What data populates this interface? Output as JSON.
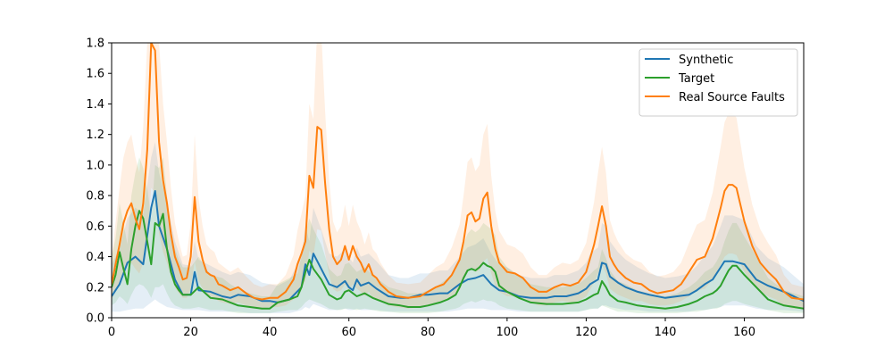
{
  "chart_data": {
    "type": "line",
    "title": "",
    "xlabel": "",
    "ylabel": "",
    "xlim": [
      0,
      175
    ],
    "ylim": [
      0,
      1.8
    ],
    "xticks": [
      0,
      20,
      40,
      60,
      80,
      100,
      120,
      140,
      160
    ],
    "yticks": [
      0.0,
      0.2,
      0.4,
      0.6,
      0.8,
      1.0,
      1.2,
      1.4,
      1.6,
      1.8
    ],
    "xtick_labels": [
      "0",
      "20",
      "40",
      "60",
      "80",
      "100",
      "120",
      "140",
      "160"
    ],
    "ytick_labels": [
      "0.0",
      "0.2",
      "0.4",
      "0.6",
      "0.8",
      "1.0",
      "1.2",
      "1.4",
      "1.6",
      "1.8"
    ],
    "grid": false,
    "legend_position": "top-right",
    "series": [
      {
        "name": "Synthetic",
        "color": "#1f77b4",
        "x": [
          0,
          2,
          4,
          6,
          8,
          10,
          11,
          12,
          14,
          16,
          18,
          20,
          21,
          22,
          25,
          28,
          30,
          32,
          35,
          38,
          40,
          42,
          45,
          48,
          49,
          50,
          51,
          53,
          55,
          57,
          59,
          60,
          61,
          62,
          63,
          65,
          67,
          70,
          73,
          75,
          78,
          80,
          83,
          85,
          88,
          90,
          92,
          94,
          96,
          98,
          100,
          103,
          106,
          108,
          110,
          112,
          115,
          118,
          120,
          121,
          123,
          124,
          125,
          126,
          128,
          130,
          133,
          136,
          140,
          143,
          146,
          148,
          150,
          152,
          154,
          155,
          157,
          160,
          163,
          166,
          170,
          175
        ],
        "y": [
          0.14,
          0.22,
          0.36,
          0.4,
          0.35,
          0.72,
          0.83,
          0.6,
          0.45,
          0.25,
          0.15,
          0.15,
          0.3,
          0.18,
          0.17,
          0.14,
          0.13,
          0.15,
          0.14,
          0.11,
          0.11,
          0.1,
          0.12,
          0.2,
          0.35,
          0.28,
          0.42,
          0.32,
          0.22,
          0.2,
          0.24,
          0.2,
          0.18,
          0.25,
          0.21,
          0.23,
          0.19,
          0.14,
          0.13,
          0.13,
          0.15,
          0.15,
          0.16,
          0.16,
          0.22,
          0.25,
          0.26,
          0.28,
          0.22,
          0.18,
          0.17,
          0.14,
          0.13,
          0.13,
          0.13,
          0.14,
          0.14,
          0.16,
          0.19,
          0.22,
          0.25,
          0.36,
          0.35,
          0.27,
          0.23,
          0.2,
          0.17,
          0.15,
          0.13,
          0.14,
          0.15,
          0.18,
          0.22,
          0.25,
          0.33,
          0.37,
          0.37,
          0.35,
          0.25,
          0.21,
          0.17,
          0.11
        ],
        "lower": [
          0.04,
          0.04,
          0.05,
          0.06,
          0.06,
          0.1,
          0.12,
          0.1,
          0.07,
          0.06,
          0.05,
          0.05,
          0.05,
          0.05,
          0.04,
          0.04,
          0.04,
          0.04,
          0.03,
          0.03,
          0.03,
          0.03,
          0.03,
          0.05,
          0.07,
          0.06,
          0.09,
          0.07,
          0.05,
          0.05,
          0.06,
          0.05,
          0.05,
          0.06,
          0.05,
          0.05,
          0.05,
          0.04,
          0.04,
          0.04,
          0.04,
          0.04,
          0.04,
          0.04,
          0.05,
          0.06,
          0.06,
          0.06,
          0.05,
          0.05,
          0.05,
          0.04,
          0.04,
          0.04,
          0.04,
          0.04,
          0.04,
          0.04,
          0.05,
          0.06,
          0.06,
          0.08,
          0.08,
          0.07,
          0.06,
          0.05,
          0.05,
          0.04,
          0.04,
          0.04,
          0.04,
          0.05,
          0.05,
          0.06,
          0.07,
          0.08,
          0.08,
          0.08,
          0.06,
          0.05,
          0.05,
          0.04
        ],
        "upper": [
          0.35,
          0.45,
          0.65,
          0.72,
          0.68,
          1.05,
          1.15,
          0.95,
          0.75,
          0.5,
          0.35,
          0.34,
          0.5,
          0.38,
          0.34,
          0.3,
          0.28,
          0.3,
          0.28,
          0.23,
          0.22,
          0.21,
          0.25,
          0.4,
          0.6,
          0.5,
          0.72,
          0.58,
          0.42,
          0.4,
          0.45,
          0.4,
          0.36,
          0.46,
          0.4,
          0.42,
          0.37,
          0.28,
          0.26,
          0.26,
          0.29,
          0.29,
          0.31,
          0.31,
          0.4,
          0.46,
          0.48,
          0.52,
          0.42,
          0.35,
          0.33,
          0.28,
          0.26,
          0.26,
          0.26,
          0.28,
          0.28,
          0.31,
          0.36,
          0.42,
          0.46,
          0.62,
          0.6,
          0.5,
          0.43,
          0.38,
          0.33,
          0.29,
          0.26,
          0.27,
          0.29,
          0.34,
          0.41,
          0.47,
          0.6,
          0.67,
          0.67,
          0.64,
          0.47,
          0.39,
          0.33,
          0.22
        ]
      },
      {
        "name": "Target",
        "color": "#2ca02c",
        "x": [
          0,
          1,
          2,
          3,
          4,
          5,
          6,
          7,
          8,
          9,
          10,
          11,
          12,
          13,
          14,
          15,
          16,
          17,
          18,
          20,
          22,
          25,
          28,
          30,
          32,
          35,
          38,
          40,
          42,
          45,
          47,
          48,
          49,
          50,
          51,
          53,
          55,
          57,
          58,
          59,
          60,
          62,
          64,
          66,
          68,
          70,
          73,
          75,
          78,
          80,
          83,
          85,
          87,
          88,
          89,
          90,
          91,
          92,
          93,
          94,
          95,
          96,
          97,
          98,
          100,
          103,
          106,
          110,
          114,
          118,
          120,
          122,
          123,
          124,
          125,
          126,
          128,
          130,
          133,
          136,
          140,
          143,
          146,
          148,
          150,
          152,
          153,
          154,
          155,
          156,
          157,
          158,
          160,
          163,
          166,
          170,
          175
        ],
        "y": [
          0.2,
          0.28,
          0.43,
          0.32,
          0.22,
          0.45,
          0.6,
          0.7,
          0.65,
          0.5,
          0.35,
          0.62,
          0.6,
          0.68,
          0.45,
          0.3,
          0.22,
          0.18,
          0.15,
          0.15,
          0.2,
          0.13,
          0.12,
          0.1,
          0.08,
          0.07,
          0.06,
          0.06,
          0.1,
          0.12,
          0.14,
          0.2,
          0.3,
          0.38,
          0.32,
          0.25,
          0.15,
          0.12,
          0.13,
          0.17,
          0.18,
          0.14,
          0.16,
          0.13,
          0.11,
          0.09,
          0.08,
          0.07,
          0.07,
          0.08,
          0.1,
          0.12,
          0.15,
          0.2,
          0.26,
          0.31,
          0.32,
          0.31,
          0.33,
          0.36,
          0.34,
          0.33,
          0.3,
          0.21,
          0.17,
          0.13,
          0.1,
          0.09,
          0.09,
          0.1,
          0.12,
          0.15,
          0.16,
          0.24,
          0.2,
          0.15,
          0.11,
          0.1,
          0.08,
          0.07,
          0.06,
          0.07,
          0.09,
          0.11,
          0.14,
          0.16,
          0.18,
          0.21,
          0.26,
          0.31,
          0.34,
          0.34,
          0.28,
          0.2,
          0.12,
          0.08,
          0.06
        ],
        "lower": [
          0.08,
          0.1,
          0.14,
          0.12,
          0.09,
          0.15,
          0.2,
          0.22,
          0.21,
          0.18,
          0.13,
          0.2,
          0.2,
          0.22,
          0.16,
          0.11,
          0.08,
          0.07,
          0.06,
          0.06,
          0.07,
          0.05,
          0.05,
          0.04,
          0.03,
          0.03,
          0.03,
          0.03,
          0.04,
          0.05,
          0.05,
          0.07,
          0.1,
          0.12,
          0.11,
          0.09,
          0.06,
          0.05,
          0.05,
          0.06,
          0.06,
          0.05,
          0.06,
          0.05,
          0.04,
          0.04,
          0.03,
          0.03,
          0.03,
          0.03,
          0.04,
          0.05,
          0.06,
          0.07,
          0.09,
          0.1,
          0.11,
          0.1,
          0.11,
          0.12,
          0.11,
          0.11,
          0.1,
          0.08,
          0.06,
          0.05,
          0.04,
          0.04,
          0.04,
          0.04,
          0.05,
          0.06,
          0.06,
          0.08,
          0.07,
          0.06,
          0.04,
          0.04,
          0.03,
          0.03,
          0.03,
          0.03,
          0.04,
          0.04,
          0.05,
          0.06,
          0.06,
          0.07,
          0.09,
          0.1,
          0.11,
          0.11,
          0.09,
          0.07,
          0.05,
          0.03,
          0.03
        ],
        "upper": [
          0.4,
          0.52,
          0.75,
          0.62,
          0.48,
          0.8,
          0.95,
          1.05,
          0.98,
          0.85,
          0.65,
          1.0,
          0.98,
          1.05,
          0.8,
          0.58,
          0.45,
          0.38,
          0.33,
          0.33,
          0.4,
          0.28,
          0.26,
          0.22,
          0.19,
          0.16,
          0.14,
          0.14,
          0.22,
          0.26,
          0.29,
          0.4,
          0.55,
          0.65,
          0.58,
          0.48,
          0.32,
          0.27,
          0.28,
          0.35,
          0.36,
          0.3,
          0.33,
          0.28,
          0.24,
          0.2,
          0.18,
          0.16,
          0.16,
          0.18,
          0.22,
          0.26,
          0.31,
          0.4,
          0.48,
          0.55,
          0.58,
          0.56,
          0.58,
          0.62,
          0.6,
          0.58,
          0.54,
          0.4,
          0.33,
          0.27,
          0.22,
          0.2,
          0.2,
          0.22,
          0.26,
          0.31,
          0.33,
          0.45,
          0.39,
          0.31,
          0.24,
          0.22,
          0.18,
          0.16,
          0.14,
          0.16,
          0.2,
          0.24,
          0.3,
          0.33,
          0.37,
          0.42,
          0.5,
          0.57,
          0.62,
          0.62,
          0.53,
          0.4,
          0.26,
          0.18,
          0.14
        ]
      },
      {
        "name": "Real Source Faults",
        "color": "#ff7f0e",
        "x": [
          0,
          1,
          2,
          3,
          4,
          5,
          6,
          7,
          8,
          9,
          10,
          11,
          12,
          13,
          14,
          15,
          16,
          17,
          18,
          19,
          20,
          21,
          22,
          23,
          24,
          25,
          26,
          27,
          28,
          30,
          32,
          34,
          36,
          38,
          40,
          42,
          44,
          46,
          47,
          48,
          49,
          50,
          51,
          52,
          53,
          54,
          55,
          56,
          57,
          58,
          59,
          60,
          61,
          62,
          63,
          64,
          65,
          66,
          67,
          68,
          70,
          72,
          75,
          78,
          80,
          82,
          84,
          86,
          88,
          89,
          90,
          91,
          92,
          93,
          94,
          95,
          96,
          97,
          98,
          100,
          102,
          104,
          106,
          108,
          110,
          112,
          114,
          116,
          118,
          120,
          122,
          123,
          124,
          125,
          126,
          127,
          128,
          130,
          132,
          134,
          136,
          138,
          140,
          142,
          144,
          146,
          148,
          150,
          152,
          154,
          155,
          156,
          157,
          158,
          160,
          162,
          164,
          166,
          168,
          170,
          172,
          175
        ],
        "y": [
          0.22,
          0.35,
          0.48,
          0.62,
          0.7,
          0.75,
          0.65,
          0.58,
          0.75,
          1.1,
          1.8,
          1.75,
          1.15,
          0.9,
          0.75,
          0.55,
          0.4,
          0.33,
          0.25,
          0.26,
          0.4,
          0.79,
          0.5,
          0.38,
          0.3,
          0.28,
          0.27,
          0.22,
          0.21,
          0.18,
          0.2,
          0.16,
          0.13,
          0.12,
          0.13,
          0.13,
          0.17,
          0.25,
          0.35,
          0.42,
          0.5,
          0.93,
          0.85,
          1.25,
          1.23,
          0.88,
          0.58,
          0.4,
          0.35,
          0.38,
          0.47,
          0.38,
          0.47,
          0.4,
          0.36,
          0.3,
          0.35,
          0.28,
          0.26,
          0.22,
          0.17,
          0.14,
          0.13,
          0.14,
          0.17,
          0.2,
          0.22,
          0.28,
          0.38,
          0.5,
          0.67,
          0.69,
          0.63,
          0.65,
          0.78,
          0.82,
          0.6,
          0.45,
          0.36,
          0.3,
          0.29,
          0.26,
          0.2,
          0.17,
          0.17,
          0.2,
          0.22,
          0.21,
          0.23,
          0.3,
          0.48,
          0.6,
          0.73,
          0.6,
          0.4,
          0.35,
          0.31,
          0.26,
          0.23,
          0.22,
          0.18,
          0.16,
          0.17,
          0.18,
          0.22,
          0.3,
          0.38,
          0.4,
          0.52,
          0.72,
          0.83,
          0.87,
          0.87,
          0.85,
          0.63,
          0.47,
          0.36,
          0.3,
          0.25,
          0.17,
          0.13,
          0.12
        ],
        "lower": [
          0.12,
          0.17,
          0.23,
          0.3,
          0.34,
          0.36,
          0.32,
          0.29,
          0.36,
          0.5,
          0.85,
          0.82,
          0.55,
          0.43,
          0.36,
          0.27,
          0.2,
          0.16,
          0.13,
          0.13,
          0.19,
          0.37,
          0.24,
          0.19,
          0.15,
          0.14,
          0.13,
          0.11,
          0.1,
          0.09,
          0.1,
          0.08,
          0.07,
          0.06,
          0.07,
          0.07,
          0.08,
          0.12,
          0.17,
          0.2,
          0.24,
          0.44,
          0.4,
          0.58,
          0.57,
          0.42,
          0.28,
          0.19,
          0.17,
          0.18,
          0.22,
          0.18,
          0.22,
          0.19,
          0.17,
          0.14,
          0.17,
          0.13,
          0.12,
          0.11,
          0.08,
          0.07,
          0.06,
          0.07,
          0.08,
          0.1,
          0.11,
          0.13,
          0.18,
          0.24,
          0.32,
          0.33,
          0.3,
          0.31,
          0.37,
          0.39,
          0.29,
          0.21,
          0.17,
          0.14,
          0.14,
          0.13,
          0.1,
          0.08,
          0.08,
          0.1,
          0.11,
          0.1,
          0.11,
          0.14,
          0.23,
          0.29,
          0.35,
          0.29,
          0.19,
          0.17,
          0.15,
          0.13,
          0.11,
          0.11,
          0.09,
          0.08,
          0.08,
          0.09,
          0.11,
          0.14,
          0.18,
          0.19,
          0.25,
          0.35,
          0.4,
          0.42,
          0.42,
          0.41,
          0.3,
          0.22,
          0.17,
          0.14,
          0.12,
          0.08,
          0.06,
          0.06
        ],
        "upper": [
          0.4,
          0.62,
          0.85,
          1.05,
          1.15,
          1.2,
          1.05,
          0.95,
          1.25,
          1.8,
          2.6,
          2.55,
          1.8,
          1.4,
          1.15,
          0.85,
          0.62,
          0.5,
          0.4,
          0.41,
          0.62,
          1.2,
          0.78,
          0.6,
          0.48,
          0.45,
          0.43,
          0.36,
          0.34,
          0.3,
          0.33,
          0.27,
          0.22,
          0.2,
          0.22,
          0.22,
          0.28,
          0.41,
          0.57,
          0.68,
          0.8,
          1.4,
          1.3,
          1.9,
          1.88,
          1.35,
          0.9,
          0.63,
          0.56,
          0.6,
          0.74,
          0.6,
          0.74,
          0.63,
          0.57,
          0.48,
          0.56,
          0.45,
          0.42,
          0.36,
          0.28,
          0.23,
          0.22,
          0.23,
          0.28,
          0.33,
          0.36,
          0.46,
          0.61,
          0.8,
          1.02,
          1.05,
          0.96,
          1.0,
          1.2,
          1.27,
          0.93,
          0.7,
          0.57,
          0.48,
          0.46,
          0.42,
          0.33,
          0.28,
          0.28,
          0.33,
          0.36,
          0.35,
          0.38,
          0.49,
          0.76,
          0.95,
          1.12,
          0.95,
          0.64,
          0.56,
          0.5,
          0.42,
          0.38,
          0.36,
          0.3,
          0.27,
          0.28,
          0.3,
          0.36,
          0.49,
          0.61,
          0.64,
          0.82,
          1.12,
          1.28,
          1.34,
          1.34,
          1.31,
          0.98,
          0.74,
          0.58,
          0.49,
          0.41,
          0.28,
          0.22,
          0.2
        ]
      }
    ]
  }
}
